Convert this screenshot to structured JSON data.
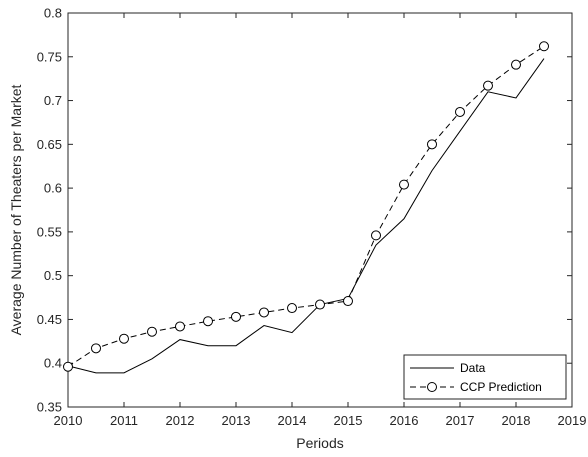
{
  "chart_data": {
    "type": "line",
    "xlabel": "Periods",
    "ylabel": "Average Number of Theaters per Market",
    "xlim": [
      2010,
      2019
    ],
    "ylim": [
      0.35,
      0.8
    ],
    "xticks": [
      "2010",
      "2011",
      "2012",
      "2013",
      "2014",
      "2015",
      "2016",
      "2017",
      "2018",
      "2019"
    ],
    "yticks": [
      "0.35",
      "0.4",
      "0.45",
      "0.5",
      "0.55",
      "0.6",
      "0.65",
      "0.7",
      "0.75",
      "0.8"
    ],
    "legend_position": "bottom-right",
    "series": [
      {
        "name": "Data",
        "style": "solid",
        "marker": "none",
        "color": "#000000",
        "x": [
          2010,
          2010.5,
          2011,
          2011.5,
          2012,
          2012.5,
          2013,
          2013.5,
          2014,
          2014.5,
          2015,
          2015.5,
          2016,
          2016.5,
          2017,
          2017.5,
          2018,
          2018.5
        ],
        "y": [
          0.397,
          0.389,
          0.389,
          0.405,
          0.427,
          0.42,
          0.42,
          0.443,
          0.435,
          0.467,
          0.474,
          0.535,
          0.565,
          0.62,
          0.665,
          0.71,
          0.703,
          0.748
        ]
      },
      {
        "name": "CCP Prediction",
        "style": "dashed",
        "marker": "circle",
        "color": "#000000",
        "x": [
          2010,
          2010.5,
          2011,
          2011.5,
          2012,
          2012.5,
          2013,
          2013.5,
          2014,
          2014.5,
          2015,
          2015.5,
          2016,
          2016.5,
          2017,
          2017.5,
          2018,
          2018.5
        ],
        "y": [
          0.396,
          0.417,
          0.428,
          0.436,
          0.442,
          0.448,
          0.453,
          0.458,
          0.463,
          0.467,
          0.471,
          0.546,
          0.604,
          0.65,
          0.687,
          0.717,
          0.741,
          0.762
        ]
      }
    ]
  }
}
